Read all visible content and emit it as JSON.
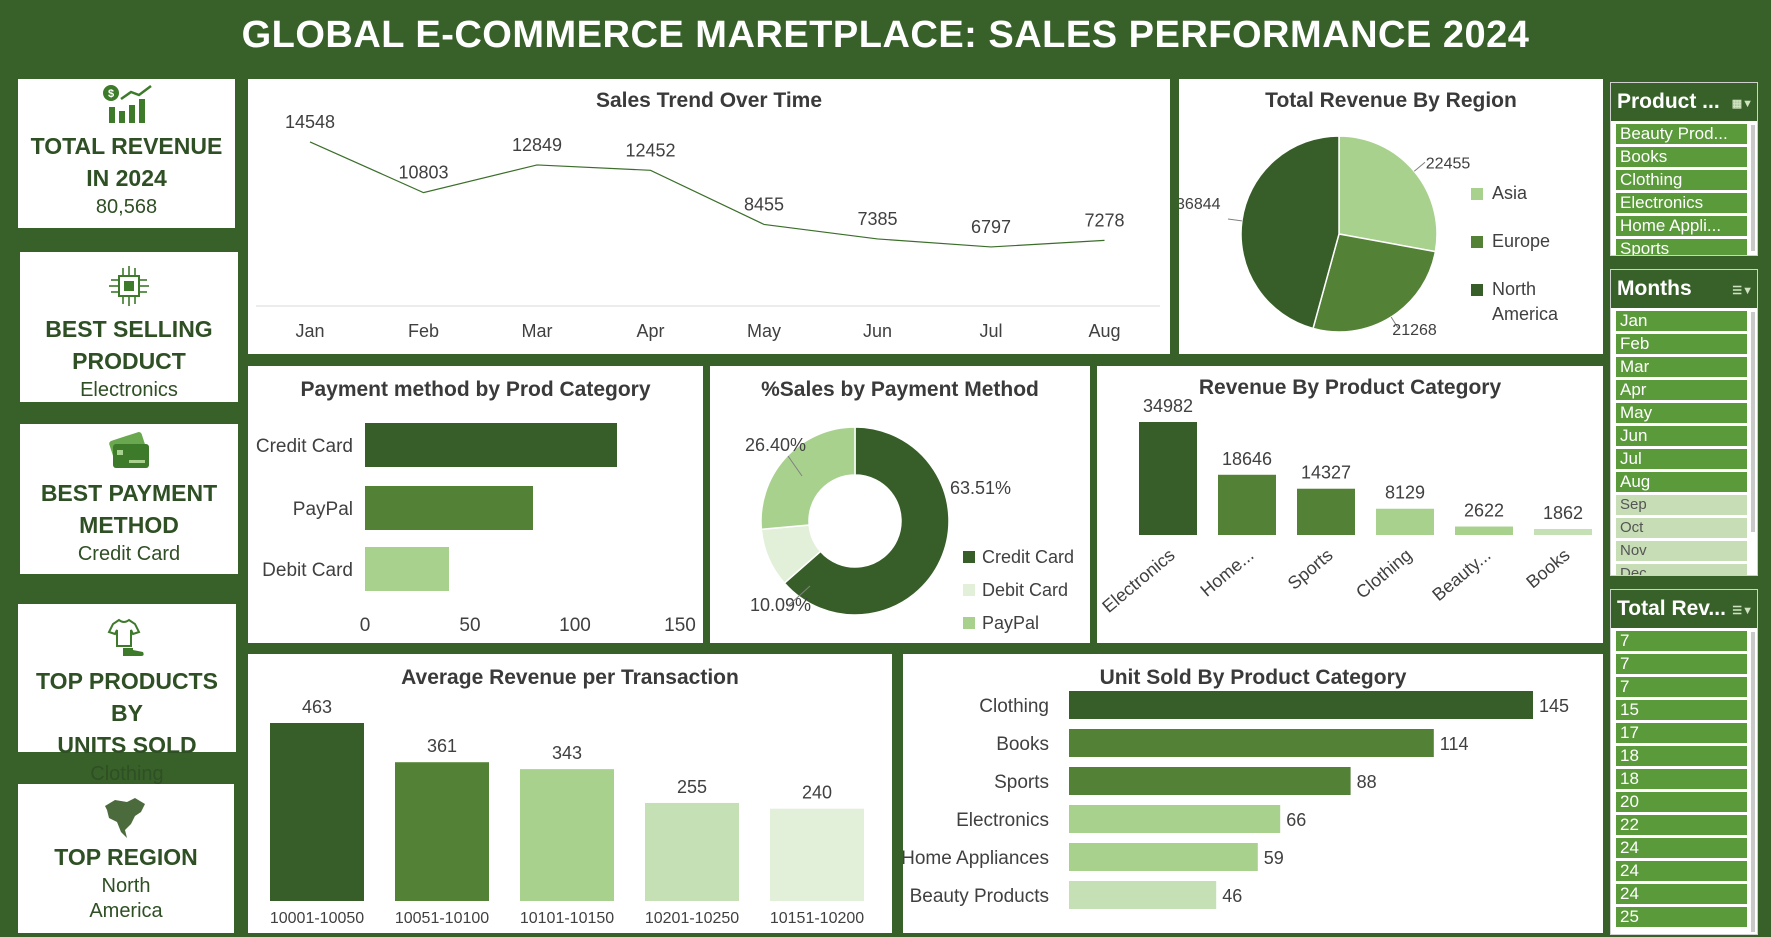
{
  "dashboard": {
    "title": "GLOBAL E-COMMERCE MARETPLACE: SALES PERFORMANCE 2024"
  },
  "kpis": [
    {
      "title_line1": "TOTAL REVENUE",
      "title_line2": "IN 2024",
      "value": "80,568",
      "icon": "revenue-chart-icon"
    },
    {
      "title_line1": "BEST SELLING",
      "title_line2": "PRODUCT",
      "value": "Electronics",
      "icon": "chip-icon"
    },
    {
      "title_line1": "BEST PAYMENT",
      "title_line2": "METHOD",
      "value": "Credit Card",
      "icon": "credit-card-icon"
    },
    {
      "title_line1": "TOP PRODUCTS BY",
      "title_line2": "UNITS SOLD",
      "value": "Clothing",
      "icon": "clothing-icon"
    },
    {
      "title_line1": "TOP REGION",
      "title_line2": "",
      "value_line1": "North",
      "value_line2": "America",
      "icon": "north-america-map-icon"
    }
  ],
  "colors": {
    "background": "#38612a",
    "dark": "#375e28",
    "mid": "#538135",
    "light": "#a9d18e",
    "lighter": "#c5e0b4",
    "lightest": "#e2efd9"
  },
  "chart_data": [
    {
      "id": "sales-trend",
      "type": "line",
      "title": "Sales Trend Over Time",
      "categories": [
        "Jan",
        "Feb",
        "Mar",
        "Apr",
        "May",
        "Jun",
        "Jul",
        "Aug"
      ],
      "values": [
        14548,
        10803,
        12849,
        12452,
        8455,
        7385,
        6797,
        7278
      ],
      "color": "#3b6e2a"
    },
    {
      "id": "revenue-region",
      "type": "pie",
      "title": "Total Revenue By Region",
      "labels": [
        "Asia",
        "Europe",
        "North America"
      ],
      "values": [
        22455,
        21268,
        36844
      ],
      "colors": [
        "#a9d18e",
        "#538135",
        "#375e28"
      ],
      "legend": "right"
    },
    {
      "id": "payment-category",
      "type": "bar",
      "orientation": "horizontal",
      "title": "Payment method by Prod Category",
      "categories": [
        "Credit Card",
        "PayPal",
        "Debit Card"
      ],
      "values": [
        120,
        80,
        40
      ],
      "xlim": [
        0,
        150
      ],
      "xticks": [
        0,
        50,
        100,
        150
      ],
      "colors": [
        "#375e28",
        "#538135",
        "#a9d18e"
      ]
    },
    {
      "id": "sales-payment",
      "type": "pie",
      "subtype": "donut",
      "title": "%Sales by Payment Method",
      "labels": [
        "Credit Card",
        "Debit Card",
        "PayPal"
      ],
      "values": [
        63.51,
        10.09,
        26.4
      ],
      "value_labels": [
        "63.51%",
        "10.09%",
        "26.40%"
      ],
      "colors": [
        "#375e28",
        "#e2efd9",
        "#a9d18e"
      ],
      "legend": "bottom-right"
    },
    {
      "id": "revenue-category",
      "type": "bar",
      "title": "Revenue By Product Category",
      "categories": [
        "Electronics",
        "Home...",
        "Sports",
        "Clothing",
        "Beauty...",
        "Books"
      ],
      "values": [
        34982,
        18646,
        14327,
        8129,
        2622,
        1862
      ],
      "colors": [
        "#375e28",
        "#538135",
        "#538135",
        "#a9d18e",
        "#a9d18e",
        "#c5e0b4"
      ]
    },
    {
      "id": "avg-revenue",
      "type": "bar",
      "title": "Average Revenue per Transaction",
      "categories": [
        "10001-10050",
        "10051-10100",
        "10101-10150",
        "10201-10250",
        "10151-10200"
      ],
      "values": [
        463,
        361,
        343,
        255,
        240
      ],
      "colors": [
        "#375e28",
        "#538135",
        "#a9d18e",
        "#c5e0b4",
        "#e2efd9"
      ]
    },
    {
      "id": "units-category",
      "type": "bar",
      "orientation": "horizontal",
      "title": "Unit Sold By Product Category",
      "categories": [
        "Clothing",
        "Books",
        "Sports",
        "Electronics",
        "Home Appliances",
        "Beauty Products"
      ],
      "values": [
        145,
        114,
        88,
        66,
        59,
        46
      ],
      "colors": [
        "#375e28",
        "#538135",
        "#538135",
        "#a9d18e",
        "#a9d18e",
        "#c5e0b4"
      ]
    }
  ],
  "slicers": {
    "product": {
      "title": "Product ...",
      "items": [
        "Beauty Prod...",
        "Books",
        "Clothing",
        "Electronics",
        "Home Appli...",
        "Sports"
      ]
    },
    "months": {
      "title": "Months",
      "items": [
        "Jan",
        "Feb",
        "Mar",
        "Apr",
        "May",
        "Jun",
        "Jul",
        "Aug",
        "Sep",
        "Oct",
        "Nov",
        "Dec"
      ],
      "selected_count": 8
    },
    "total_revenue": {
      "title": "Total Rev...",
      "items": [
        "7",
        "7",
        "7",
        "15",
        "17",
        "18",
        "18",
        "20",
        "22",
        "24",
        "24",
        "24",
        "25"
      ]
    }
  }
}
